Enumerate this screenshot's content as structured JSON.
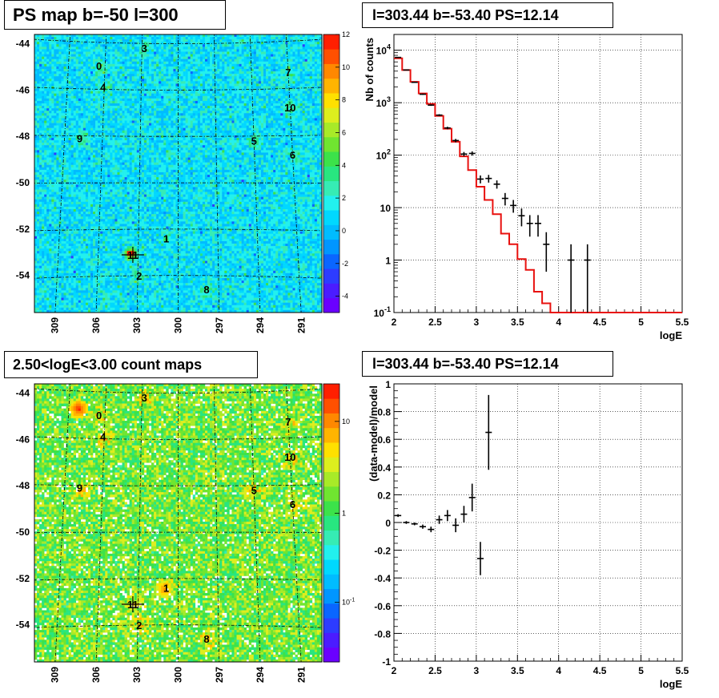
{
  "chart_data": [
    {
      "type": "heatmap",
      "title": "PS map b=-50 l=300",
      "y_ticks": [
        "-44",
        "-46",
        "-48",
        "-50",
        "-52",
        "-54"
      ],
      "x_ticks": [
        "309",
        "306",
        "303",
        "300",
        "297",
        "294",
        "291"
      ],
      "colorbar_ticks": [
        "12",
        "10",
        "8",
        "6",
        "4",
        "2",
        "0",
        "-2",
        "-4"
      ],
      "colorbar_range": [
        -5,
        12
      ],
      "sources": [
        {
          "label": "0",
          "x": 306.5,
          "y": -45.0
        },
        {
          "label": "3",
          "x": 302.8,
          "y": -44.2
        },
        {
          "label": "7",
          "x": 291.0,
          "y": -45.3
        },
        {
          "label": "4",
          "x": 306.1,
          "y": -45.9
        },
        {
          "label": "10",
          "x": 291.0,
          "y": -46.8
        },
        {
          "label": "9",
          "x": 307.8,
          "y": -48.1
        },
        {
          "label": "5",
          "x": 294.0,
          "y": -48.2
        },
        {
          "label": "6",
          "x": 291.0,
          "y": -48.8
        },
        {
          "label": "1",
          "x": 300.9,
          "y": -52.4
        },
        {
          "label": "11",
          "x": 303.4,
          "y": -53.1
        },
        {
          "label": "2",
          "x": 302.9,
          "y": -54.0
        },
        {
          "label": "8",
          "x": 297.9,
          "y": -54.6
        }
      ]
    },
    {
      "type": "line",
      "title": "l=303.44 b=-53.40 PS=12.14",
      "xlabel": "logE",
      "ylabel": "Nb of counts",
      "xlim": [
        2,
        5.5
      ],
      "ylim": [
        0.1,
        20000
      ],
      "log_y": true,
      "x_ticks": [
        "2",
        "2.5",
        "3",
        "3.5",
        "4",
        "4.5",
        "5",
        "5.5"
      ],
      "y_ticks": [
        "10^-1",
        "1",
        "10",
        "10^2",
        "10^3",
        "10^4"
      ],
      "grid": true,
      "model_color": "#e8110f",
      "model_step": {
        "edges": [
          2.0,
          2.1,
          2.2,
          2.3,
          2.4,
          2.5,
          2.6,
          2.7,
          2.8,
          2.9,
          3.0,
          3.1,
          3.2,
          3.3,
          3.4,
          3.5,
          3.6,
          3.7,
          3.8,
          3.9,
          4.0,
          5.5
        ],
        "values": [
          7000,
          4200,
          2500,
          1500,
          950,
          560,
          320,
          180,
          95,
          52,
          25,
          14,
          7.5,
          3.2,
          2.0,
          1.05,
          0.65,
          0.25,
          0.15,
          0.1,
          0.1
        ]
      },
      "data_points": {
        "x": [
          2.05,
          2.15,
          2.25,
          2.35,
          2.45,
          2.55,
          2.65,
          2.75,
          2.85,
          2.95,
          3.05,
          3.15,
          3.25,
          3.35,
          3.45,
          3.55,
          3.65,
          3.75,
          3.85,
          4.15,
          4.35
        ],
        "y": [
          7300,
          4200,
          2450,
          1450,
          900,
          580,
          330,
          190,
          105,
          108,
          35,
          36,
          28,
          15,
          11,
          7,
          5,
          5,
          2,
          1,
          1
        ],
        "yerr_lo": [
          100,
          70,
          50,
          40,
          30,
          24,
          18,
          14,
          10,
          10,
          6,
          6,
          5,
          4,
          3,
          2.6,
          2.2,
          2.2,
          1.4,
          0.99,
          0.99
        ],
        "yerr_hi": [
          100,
          70,
          50,
          40,
          30,
          24,
          18,
          14,
          10,
          10,
          6,
          6,
          5,
          4,
          3,
          2.6,
          2.2,
          2.2,
          1.4,
          1,
          1
        ]
      }
    },
    {
      "type": "heatmap",
      "title": "2.50<logE<3.00 count maps",
      "y_ticks": [
        "-44",
        "-46",
        "-48",
        "-50",
        "-52",
        "-54"
      ],
      "x_ticks": [
        "309",
        "306",
        "303",
        "300",
        "297",
        "294",
        "291"
      ],
      "colorbar_ticks": [
        "10",
        "1",
        "10^-1"
      ],
      "log_scale": true
    },
    {
      "type": "scatter",
      "title": "l=303.44 b=-53.40 PS=12.14",
      "xlabel": "logE",
      "ylabel": "(data-model)/model",
      "xlim": [
        2,
        5.5
      ],
      "ylim": [
        -1,
        1
      ],
      "x_ticks": [
        "2",
        "2.5",
        "3",
        "3.5",
        "4",
        "4.5",
        "5",
        "5.5"
      ],
      "y_ticks": [
        "-1",
        "-0.8",
        "-0.6",
        "-0.4",
        "-0.2",
        "0",
        "0.2",
        "0.4",
        "0.6",
        "0.8",
        "1"
      ],
      "grid": true,
      "x": [
        2.05,
        2.15,
        2.25,
        2.35,
        2.45,
        2.55,
        2.65,
        2.75,
        2.85,
        2.95,
        3.05,
        3.15
      ],
      "y": [
        0.05,
        0.0,
        -0.01,
        -0.03,
        -0.05,
        0.02,
        0.05,
        -0.02,
        0.06,
        0.18,
        -0.26,
        0.65
      ],
      "yerr": [
        0.01,
        0.01,
        0.01,
        0.015,
        0.02,
        0.03,
        0.04,
        0.05,
        0.06,
        0.1,
        0.12,
        0.27
      ]
    }
  ]
}
